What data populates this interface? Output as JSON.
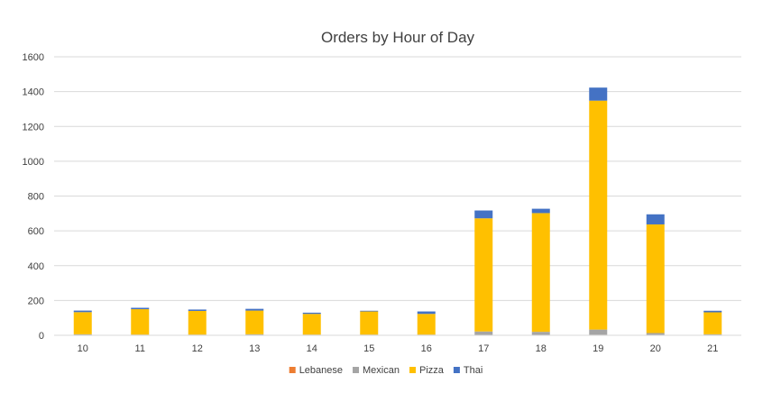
{
  "chart_data": {
    "type": "bar",
    "stacked": true,
    "title": "Orders by Hour of Day",
    "xlabel": "",
    "ylabel": "",
    "categories": [
      "10",
      "11",
      "12",
      "13",
      "14",
      "15",
      "16",
      "17",
      "18",
      "19",
      "20",
      "21"
    ],
    "ylim": [
      0,
      1600
    ],
    "yticks": [
      0,
      200,
      400,
      600,
      800,
      1000,
      1200,
      1400,
      1600
    ],
    "grid": true,
    "legend_position": "bottom",
    "series": [
      {
        "name": "Lebanese",
        "color": "#ED7D31",
        "values": [
          1,
          1,
          1,
          1,
          1,
          1,
          1,
          2,
          2,
          3,
          1,
          1
        ]
      },
      {
        "name": "Mexican",
        "color": "#A5A5A5",
        "values": [
          5,
          3,
          3,
          5,
          3,
          3,
          3,
          20,
          18,
          30,
          12,
          5
        ]
      },
      {
        "name": "Pizza",
        "color": "#FFC000",
        "values": [
          127,
          146,
          136,
          136,
          119,
          133,
          119,
          650,
          682,
          1315,
          624,
          126
        ]
      },
      {
        "name": "Thai",
        "color": "#4472C4",
        "values": [
          9,
          8,
          8,
          10,
          7,
          4,
          14,
          45,
          25,
          75,
          58,
          9
        ]
      }
    ]
  }
}
